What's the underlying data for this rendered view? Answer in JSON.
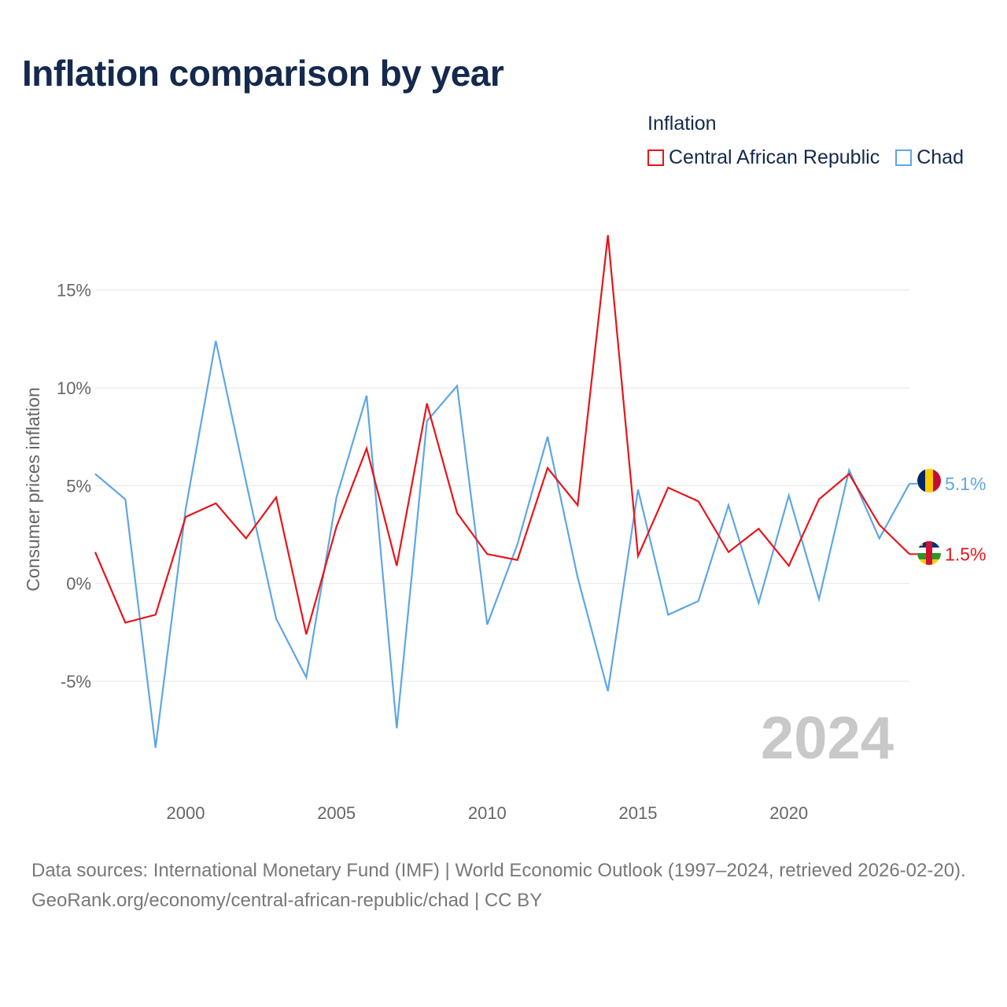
{
  "title": "Inflation comparison by year",
  "legend": {
    "title": "Inflation",
    "items": [
      {
        "name": "Central African Republic",
        "color": "#e8141a"
      },
      {
        "name": "Chad",
        "color": "#5ea6e6"
      }
    ]
  },
  "year_watermark": "2024",
  "footer": {
    "sources": "Data sources: International Monetary Fund (IMF) | World Economic Outlook (1997–2024, retrieved 2026-02-20).",
    "credit": "GeoRank.org/economy/central-african-republic/chad | CC BY"
  },
  "chart_data": {
    "type": "line",
    "title": "Inflation comparison by year",
    "xlabel": "",
    "ylabel": "Consumer prices inflation",
    "x": [
      1997,
      1998,
      1999,
      2000,
      2001,
      2002,
      2003,
      2004,
      2005,
      2006,
      2007,
      2008,
      2009,
      2010,
      2011,
      2012,
      2013,
      2014,
      2015,
      2016,
      2017,
      2018,
      2019,
      2020,
      2021,
      2022,
      2023,
      2024
    ],
    "xlim": [
      1997,
      2024
    ],
    "ylim": [
      -8.5,
      18
    ],
    "x_ticks": [
      2000,
      2005,
      2010,
      2015,
      2020
    ],
    "y_ticks": [
      -5,
      0,
      5,
      10,
      15
    ],
    "y_tick_labels": [
      "-5%",
      "0%",
      "5%",
      "10%",
      "15%"
    ],
    "grid": true,
    "series": [
      {
        "name": "Central African Republic",
        "color": "#e8141a",
        "end_label": "1.5%",
        "values": [
          1.6,
          -2.0,
          -1.6,
          3.4,
          4.1,
          2.3,
          4.4,
          -2.6,
          2.9,
          6.9,
          0.9,
          9.2,
          3.6,
          1.5,
          1.2,
          5.9,
          4.0,
          17.8,
          1.4,
          4.9,
          4.2,
          1.6,
          2.8,
          0.9,
          4.3,
          5.6,
          3.0,
          1.5
        ]
      },
      {
        "name": "Chad",
        "color": "#5ea6e6",
        "end_label": "5.1%",
        "values": [
          5.6,
          4.3,
          -8.4,
          3.8,
          12.4,
          5.2,
          -1.8,
          -4.8,
          4.4,
          9.6,
          -7.4,
          8.3,
          10.1,
          -2.1,
          2.0,
          7.5,
          0.3,
          -5.5,
          4.8,
          -1.6,
          -0.9,
          4.0,
          -1.0,
          4.5,
          -0.8,
          5.8,
          2.3,
          5.1
        ]
      }
    ]
  }
}
